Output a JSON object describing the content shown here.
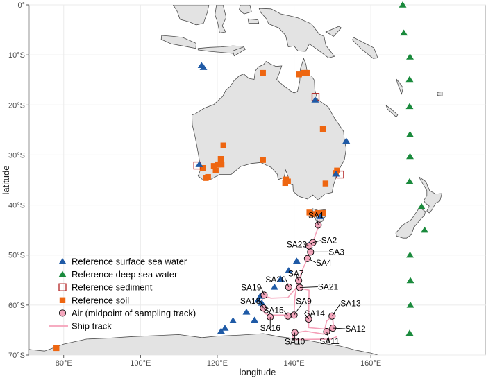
{
  "axes": {
    "xlabel": "longitude",
    "ylabel": "latitude",
    "xlim": [
      71,
      190
    ],
    "ylim": [
      -70,
      0
    ],
    "x_ticks": [
      {
        "value": 80,
        "label": "80°E"
      },
      {
        "value": 100,
        "label": "100°E"
      },
      {
        "value": 120,
        "label": "120°E"
      },
      {
        "value": 140,
        "label": "140°E"
      },
      {
        "value": 160,
        "label": "160°E"
      }
    ],
    "y_ticks": [
      {
        "value": 0,
        "label": "0°"
      },
      {
        "value": -10,
        "label": "10°S"
      },
      {
        "value": -20,
        "label": "20°S"
      },
      {
        "value": -30,
        "label": "30°S"
      },
      {
        "value": -40,
        "label": "40°S"
      },
      {
        "value": -50,
        "label": "50°S"
      },
      {
        "value": -60,
        "label": "60°S"
      },
      {
        "value": -70,
        "label": "70°S"
      }
    ]
  },
  "colors": {
    "land": "#e3e3e3",
    "coast": "#4d4d4d",
    "grid": "#ebebeb",
    "surface_water": "#1f5aa6",
    "deep_water": "#1a8a3c",
    "sediment": "#b22222",
    "soil": "#ee6611",
    "air_fill": "#f4a7bd",
    "ship_track": "#f4a0b8"
  },
  "legend": [
    {
      "key": "surface",
      "label": "Reference surface sea water"
    },
    {
      "key": "deep",
      "label": "Reference deep sea water"
    },
    {
      "key": "sediment",
      "label": "Reference sediment"
    },
    {
      "key": "soil",
      "label": "Reference soil"
    },
    {
      "key": "air",
      "label": "Air (midpoint of sampling track)"
    },
    {
      "key": "track",
      "label": "Ship track"
    }
  ],
  "chart_data": {
    "type": "scatter",
    "title": "",
    "surface_sea_water": [
      [
        115.9,
        -12.1
      ],
      [
        116.4,
        -12.5
      ],
      [
        145.5,
        -19.0
      ],
      [
        153.6,
        -27.2
      ],
      [
        115.3,
        -31.9
      ],
      [
        150.9,
        -33.8
      ],
      [
        146.8,
        -42.3
      ],
      [
        143.9,
        -48.0
      ],
      [
        140.7,
        -51.2
      ],
      [
        138.6,
        -53.1
      ],
      [
        136.5,
        -54.8
      ],
      [
        134.9,
        -56.4
      ],
      [
        131.2,
        -58.2
      ],
      [
        130.6,
        -59.0
      ],
      [
        131.6,
        -59.6
      ],
      [
        127.6,
        -61.4
      ],
      [
        129.7,
        -63.0
      ],
      [
        124.1,
        -63.1
      ],
      [
        122.0,
        -64.6
      ],
      [
        121.0,
        -65.2
      ]
    ],
    "deep_sea_water": [
      [
        168.3,
        0.0
      ],
      [
        168.6,
        -5.6
      ],
      [
        170.2,
        -10.4
      ],
      [
        170.1,
        -14.9
      ],
      [
        170.1,
        -20.3
      ],
      [
        170.2,
        -25.9
      ],
      [
        170.2,
        -30.3
      ],
      [
        170.1,
        -35.3
      ],
      [
        173.2,
        -40.3
      ],
      [
        174.0,
        -45.0
      ],
      [
        170.2,
        -50.0
      ],
      [
        170.3,
        -55.1
      ],
      [
        170.3,
        -60.0
      ],
      [
        170.1,
        -65.6
      ]
    ],
    "sediment": [
      [
        145.6,
        -18.4
      ],
      [
        114.8,
        -32.1
      ],
      [
        152.0,
        -33.9
      ]
    ],
    "soil": [
      [
        131.9,
        -13.6
      ],
      [
        141.3,
        -13.9
      ],
      [
        142.5,
        -13.6
      ],
      [
        143.3,
        -13.6
      ],
      [
        147.5,
        -24.8
      ],
      [
        121.6,
        -28.1
      ],
      [
        119.1,
        -32.2
      ],
      [
        120.1,
        -31.9
      ],
      [
        121.1,
        -31.9
      ],
      [
        119.6,
        -33.1
      ],
      [
        120.9,
        -30.8
      ],
      [
        116.2,
        -32.6
      ],
      [
        117.0,
        -34.6
      ],
      [
        117.6,
        -34.4
      ],
      [
        131.9,
        -31.0
      ],
      [
        137.9,
        -34.9
      ],
      [
        138.4,
        -35.3
      ],
      [
        137.7,
        -35.6
      ],
      [
        148.2,
        -35.7
      ],
      [
        151.2,
        -33.1
      ],
      [
        150.9,
        -33.6
      ],
      [
        144.0,
        -41.5
      ],
      [
        144.9,
        -41.8
      ],
      [
        146.2,
        -41.6
      ],
      [
        147.6,
        -41.6
      ],
      [
        78.1,
        -68.6
      ]
    ],
    "air_samples": [
      {
        "label": "SA1",
        "lon": 146.3,
        "lat": -44.0
      },
      {
        "label": "SA2",
        "lon": 144.9,
        "lat": -47.5
      },
      {
        "label": "SA23",
        "lon": 143.9,
        "lat": -48.2
      },
      {
        "label": "SA3",
        "lon": 144.3,
        "lat": -49.4
      },
      {
        "label": "SA4",
        "lon": 143.5,
        "lat": -50.7
      },
      {
        "label": "SA7",
        "lon": 141.2,
        "lat": -55.1
      },
      {
        "label": "SA20",
        "lon": 138.6,
        "lat": -56.4
      },
      {
        "label": "SA21",
        "lon": 141.5,
        "lat": -56.5
      },
      {
        "label": "SA19",
        "lon": 132.2,
        "lat": -58.0
      },
      {
        "label": "SA18",
        "lon": 132.0,
        "lat": -60.6
      },
      {
        "label": "SA9",
        "lon": 140.0,
        "lat": -62.0
      },
      {
        "label": "SA15",
        "lon": 138.4,
        "lat": -62.2
      },
      {
        "label": "SA16",
        "lon": 133.8,
        "lat": -62.4
      },
      {
        "label": "SA14",
        "lon": 143.8,
        "lat": -62.8
      },
      {
        "label": "SA13",
        "lon": 149.9,
        "lat": -62.2
      },
      {
        "label": "SA12",
        "lon": 150.1,
        "lat": -64.6
      },
      {
        "label": "SA11",
        "lon": 148.5,
        "lat": -65.3
      },
      {
        "label": "SA10",
        "lon": 140.2,
        "lat": -65.5
      }
    ],
    "ship_track": [
      [
        146.6,
        -41.8
      ],
      [
        146.5,
        -44.0
      ],
      [
        144.9,
        -47.4
      ],
      [
        143.3,
        -51.0
      ],
      [
        142.0,
        -53.3
      ],
      [
        141.2,
        -55.1
      ],
      [
        140.6,
        -56.5
      ],
      [
        139.5,
        -57.5
      ],
      [
        138.4,
        -58.5
      ],
      [
        134.0,
        -58.6
      ],
      [
        131.9,
        -58.1
      ],
      [
        131.4,
        -60.3
      ],
      [
        132.4,
        -61.7
      ],
      [
        133.7,
        -62.0
      ],
      [
        138.4,
        -62.0
      ],
      [
        140.0,
        -62.0
      ],
      [
        140.2,
        -58.5
      ],
      [
        140.6,
        -56.5
      ],
      [
        143.9,
        -57.0
      ],
      [
        143.8,
        -62.2
      ],
      [
        143.8,
        -64.5
      ],
      [
        148.0,
        -64.8
      ],
      [
        150.3,
        -64.6
      ],
      [
        150.0,
        -62.2
      ],
      [
        148.5,
        -63.2
      ],
      [
        147.7,
        -65.8
      ],
      [
        143.0,
        -65.2
      ],
      [
        139.6,
        -65.6
      ],
      [
        139.8,
        -66.9
      ],
      [
        149.6,
        -66.8
      ],
      [
        151.2,
        -66.3
      ]
    ]
  }
}
